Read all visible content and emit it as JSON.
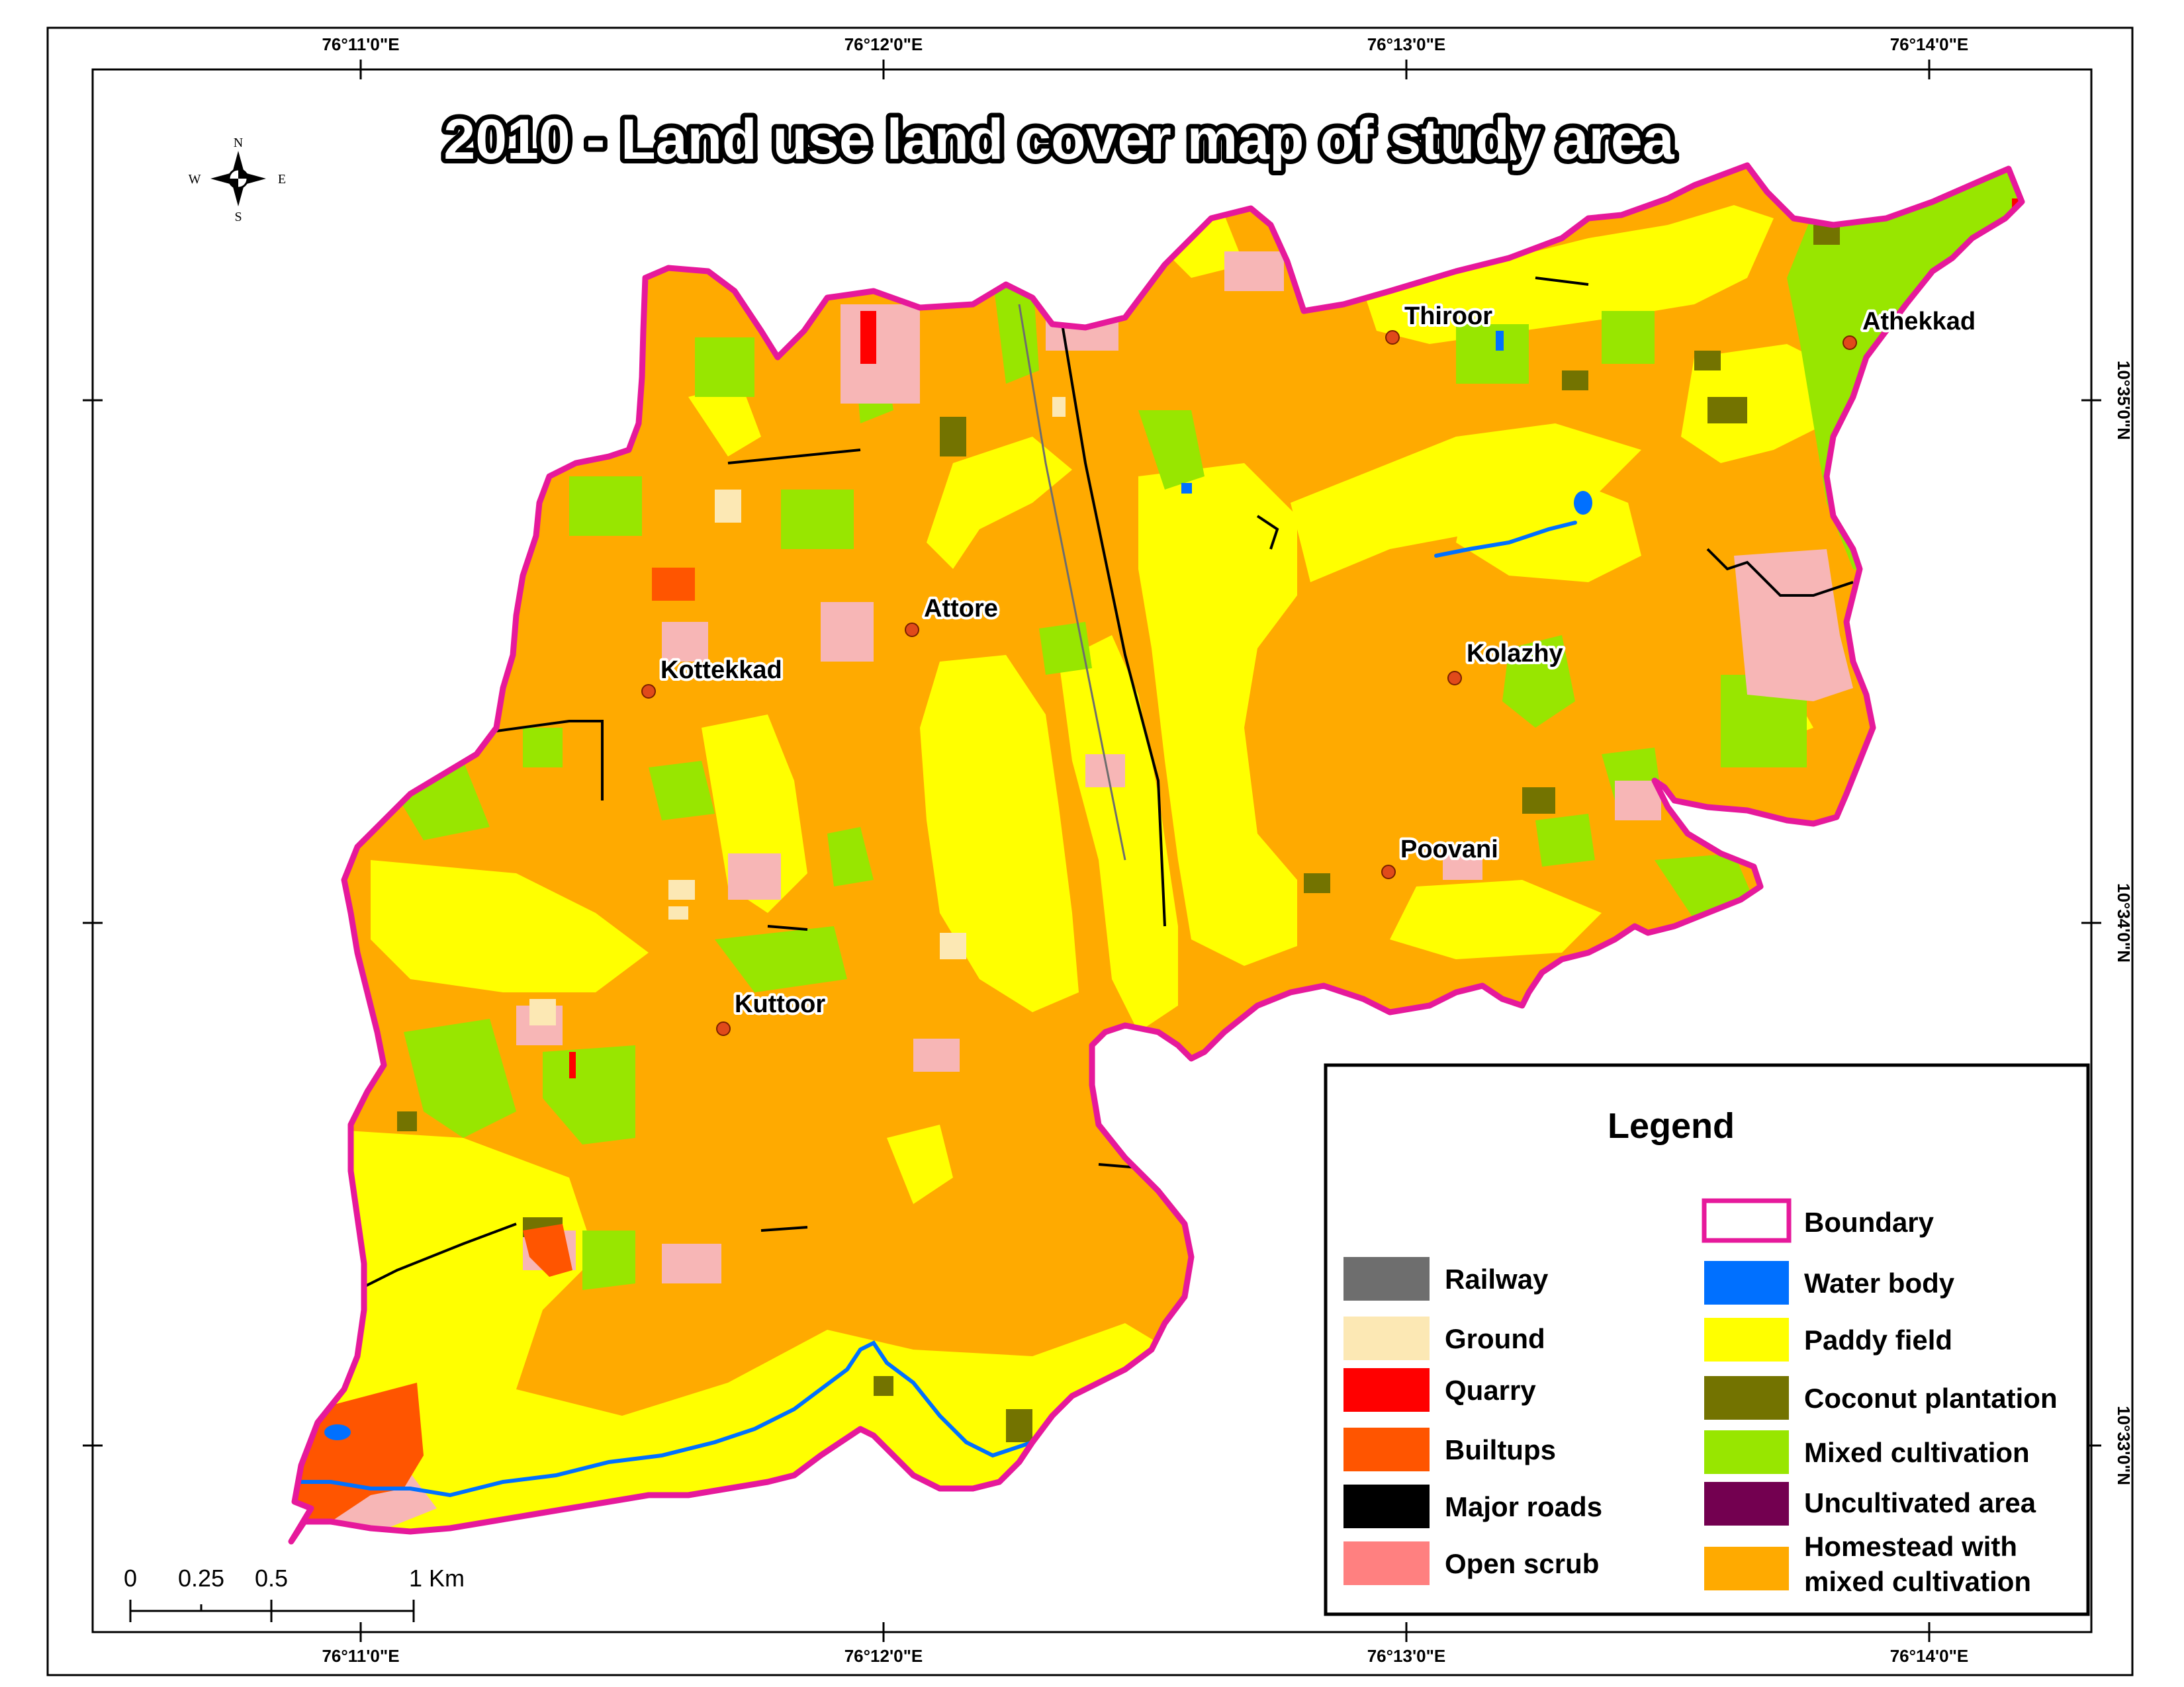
{
  "map": {
    "title": "2010 - Land use land cover map of study area",
    "graticule": {
      "top_labels": [
        "76°11'0\"E",
        "76°12'0\"E",
        "76°13'0\"E",
        "76°14'0\"E"
      ],
      "bottom_labels": [
        "76°11'0\"E",
        "76°12'0\"E",
        "76°13'0\"E",
        "76°14'0\"E"
      ],
      "right_labels": [
        "10°35'0\"N",
        "10°34'0\"N",
        "10°33'0\"N"
      ]
    },
    "places": [
      {
        "name": "Thiroor"
      },
      {
        "name": "Athekkad"
      },
      {
        "name": "Attore"
      },
      {
        "name": "Kottekkad"
      },
      {
        "name": "Kolazhy"
      },
      {
        "name": "Poovani"
      },
      {
        "name": "Kuttoor"
      }
    ],
    "compass": {
      "n": "N",
      "s": "S",
      "e": "E",
      "w": "W"
    },
    "scale_bar": {
      "labels": [
        "0",
        "0.25",
        "0.5",
        "1 Km"
      ]
    },
    "legend": {
      "title": "Legend",
      "left_items": [
        {
          "label": "Railway",
          "color": "#6e6e6e"
        },
        {
          "label": "Ground",
          "color": "#fce8b4"
        },
        {
          "label": "Quarry",
          "color": "#ff0000"
        },
        {
          "label": "Builtups",
          "color": "#ff5500"
        },
        {
          "label": "Major roads",
          "color": "#000000"
        },
        {
          "label": "Open scrub",
          "color": "#ff8080"
        }
      ],
      "right_items": [
        {
          "label": "Boundary",
          "color": "#e6199b",
          "style": "outline"
        },
        {
          "label": "Water body",
          "color": "#0070ff"
        },
        {
          "label": "Paddy field",
          "color": "#ffff00"
        },
        {
          "label": "Coconut plantation",
          "color": "#737300"
        },
        {
          "label": "Mixed cultivation",
          "color": "#98e600"
        },
        {
          "label": "Uncultivated area",
          "color": "#730050"
        },
        {
          "label": "Homestead with",
          "label2": "mixed cultivation",
          "color": "#ffaa00"
        }
      ]
    },
    "colors": {
      "homestead": "#ffaa00",
      "paddy": "#ffff00",
      "mixed": "#98e600",
      "scrub_map": "#f7b6b6",
      "coconut": "#737300",
      "builtup": "#ff5500",
      "water": "#0070ff",
      "boundary": "#e6199b",
      "place_dot": "#e04a1a"
    }
  }
}
